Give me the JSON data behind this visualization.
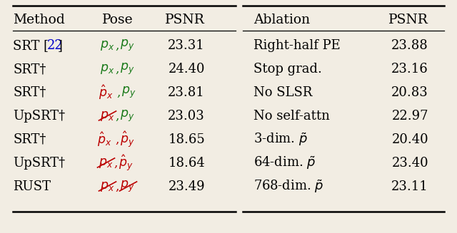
{
  "left_rows": [
    {
      "method": "SRT [22]",
      "has_ref": true,
      "dagger": false,
      "px_hat": false,
      "px_strike": false,
      "px_color": "#1a7a1a",
      "comma_color": "#1a7a1a",
      "py_hat": false,
      "py_strike": false,
      "py_color": "#1a7a1a",
      "psnr": "23.31"
    },
    {
      "method": "SRT",
      "has_ref": false,
      "dagger": true,
      "px_hat": false,
      "px_strike": false,
      "px_color": "#1a7a1a",
      "comma_color": "#1a7a1a",
      "py_hat": false,
      "py_strike": false,
      "py_color": "#1a7a1a",
      "psnr": "24.40"
    },
    {
      "method": "SRT",
      "has_ref": false,
      "dagger": true,
      "px_hat": true,
      "px_strike": false,
      "px_color": "#bb0000",
      "comma_color": "#1a7a1a",
      "py_hat": false,
      "py_strike": false,
      "py_color": "#1a7a1a",
      "psnr": "23.81"
    },
    {
      "method": "UpSRT",
      "has_ref": false,
      "dagger": true,
      "px_hat": false,
      "px_strike": true,
      "px_color": "#bb0000",
      "comma_color": "#1a7a1a",
      "py_hat": false,
      "py_strike": false,
      "py_color": "#1a7a1a",
      "psnr": "23.03"
    },
    {
      "method": "SRT",
      "has_ref": false,
      "dagger": true,
      "px_hat": true,
      "px_strike": false,
      "px_color": "#bb0000",
      "comma_color": "#bb0000",
      "py_hat": true,
      "py_strike": false,
      "py_color": "#bb0000",
      "psnr": "18.65"
    },
    {
      "method": "UpSRT",
      "has_ref": false,
      "dagger": true,
      "px_hat": false,
      "px_strike": true,
      "px_color": "#bb0000",
      "comma_color": "#bb0000",
      "py_hat": true,
      "py_strike": false,
      "py_color": "#bb0000",
      "psnr": "18.64"
    },
    {
      "method": "RUST",
      "has_ref": false,
      "dagger": false,
      "px_hat": false,
      "px_strike": true,
      "px_color": "#bb0000",
      "comma_color": "#bb0000",
      "py_hat": false,
      "py_strike": true,
      "py_color": "#bb0000",
      "psnr": "23.49"
    }
  ],
  "right_rows": [
    {
      "ablation": "Right-half PE",
      "psnr": "23.88"
    },
    {
      "ablation": "Stop grad.",
      "psnr": "23.16"
    },
    {
      "ablation": "No SLSR",
      "psnr": "20.83"
    },
    {
      "ablation": "No self-attn",
      "psnr": "22.97"
    },
    {
      "ablation": "3-dim. $\\tilde{p}$",
      "psnr": "20.40"
    },
    {
      "ablation": "64-dim. $\\tilde{p}$",
      "psnr": "23.40"
    },
    {
      "ablation": "768-dim. $\\tilde{p}$",
      "psnr": "23.11"
    }
  ],
  "bg_color": "#f2ede3",
  "blue": "#0000cc",
  "green": "#1a7a1a",
  "red": "#bb0000"
}
